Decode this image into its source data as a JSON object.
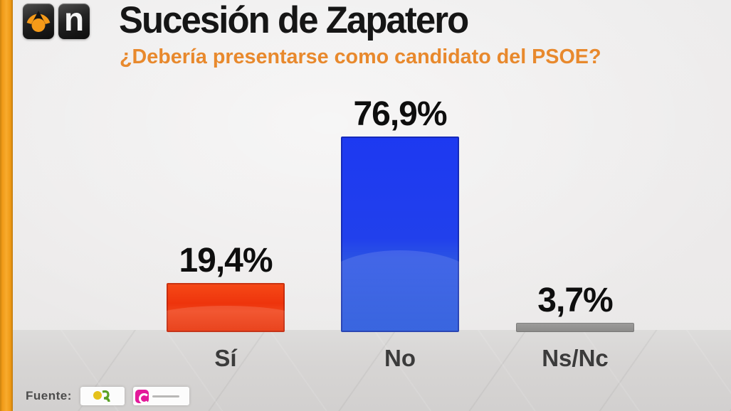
{
  "header": {
    "logo_n_letter": "n",
    "title": "Sucesión de Zapatero",
    "subtitle": "¿Debería presentarse como candidato del PSOE?"
  },
  "chart_data": {
    "type": "bar",
    "title": "Sucesión de Zapatero",
    "subtitle": "¿Debería presentarse como candidato del PSOE?",
    "categories": [
      "Sí",
      "No",
      "Ns/Nc"
    ],
    "values": [
      19.4,
      76.9,
      3.7
    ],
    "value_labels": [
      "19,4%",
      "76,9%",
      "3,7%"
    ],
    "bar_colors": [
      "#ee3a10",
      "#2244ee",
      "#8f8f8f"
    ],
    "ylim": [
      0,
      100
    ],
    "grid": false,
    "legend": false,
    "value_label_position": "above-bar"
  },
  "footer": {
    "source_label": "Fuente:"
  },
  "colors": {
    "accent_orange_stripe": "#f5a01f",
    "subtitle_orange": "#e8892d",
    "title_black": "#161616",
    "bar_si_red": "#ee3a10",
    "bar_no_blue": "#2244ee",
    "bar_nsnc_gray": "#8f8f8f",
    "background_top": "#eceaea",
    "background_floor": "#d7d5d4"
  }
}
